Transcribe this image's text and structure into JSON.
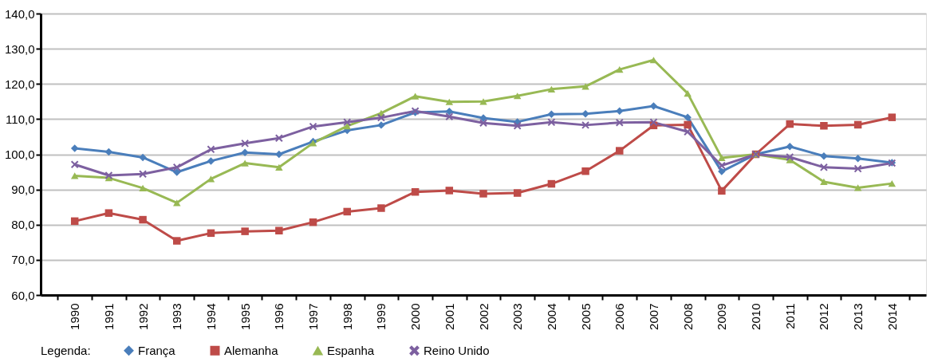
{
  "chart_data": {
    "type": "line",
    "legend_title": "Legenda:",
    "legend": "bottom",
    "grid": "y",
    "line_style": "solid",
    "categories": [
      "1990",
      "1991",
      "1992",
      "1993",
      "1994",
      "1995",
      "1996",
      "1997",
      "1998",
      "1999",
      "2000",
      "2001",
      "2002",
      "2003",
      "2004",
      "2005",
      "2006",
      "2007",
      "2008",
      "2009",
      "2010",
      "2011",
      "2012",
      "2013",
      "2014"
    ],
    "ylim": [
      60,
      140
    ],
    "yticks": [
      {
        "value": 60,
        "label": "60,0"
      },
      {
        "value": 70,
        "label": "70,0"
      },
      {
        "value": 80,
        "label": "80,0"
      },
      {
        "value": 90,
        "label": "90,0"
      },
      {
        "value": 100,
        "label": "100,0"
      },
      {
        "value": 110,
        "label": "110,0"
      },
      {
        "value": 120,
        "label": "120,0"
      },
      {
        "value": 130,
        "label": "130,0"
      },
      {
        "value": 140,
        "label": "140,0"
      }
    ],
    "series": [
      {
        "name": "França",
        "color": "#4a7ebb",
        "marker": "diamond",
        "values": [
          101.7,
          100.7,
          99.1,
          94.9,
          98.1,
          100.5,
          100.0,
          103.6,
          106.8,
          108.3,
          111.9,
          112.2,
          110.3,
          109.2,
          111.4,
          111.5,
          112.3,
          113.7,
          110.5,
          95.1,
          100.0,
          102.2,
          99.5,
          98.8,
          97.6
        ]
      },
      {
        "name": "Alemanha",
        "color": "#be4b48",
        "marker": "square",
        "values": [
          81.0,
          83.3,
          81.4,
          75.4,
          77.6,
          78.1,
          78.3,
          80.7,
          83.7,
          84.7,
          89.3,
          89.7,
          88.8,
          89.0,
          91.6,
          95.2,
          101.0,
          108.2,
          108.4,
          89.6,
          100.0,
          108.6,
          108.1,
          108.4,
          110.5
        ]
      },
      {
        "name": "Espanha",
        "color": "#98b954",
        "marker": "triangle",
        "values": [
          93.9,
          93.3,
          90.4,
          86.2,
          93.0,
          97.5,
          96.3,
          103.2,
          108.0,
          111.7,
          116.5,
          114.9,
          115.0,
          116.6,
          118.5,
          119.3,
          124.1,
          126.8,
          117.3,
          99.0,
          100.0,
          98.4,
          92.2,
          90.5,
          91.7
        ]
      },
      {
        "name": "Reino Unido",
        "color": "#7d60a0",
        "marker": "cross",
        "values": [
          97.1,
          94.0,
          94.4,
          96.3,
          101.4,
          103.1,
          104.6,
          107.9,
          109.1,
          110.4,
          112.3,
          110.7,
          108.9,
          108.1,
          109.1,
          108.3,
          109.0,
          109.1,
          106.4,
          96.8,
          100.0,
          99.2,
          96.3,
          95.9,
          97.5
        ]
      }
    ]
  }
}
